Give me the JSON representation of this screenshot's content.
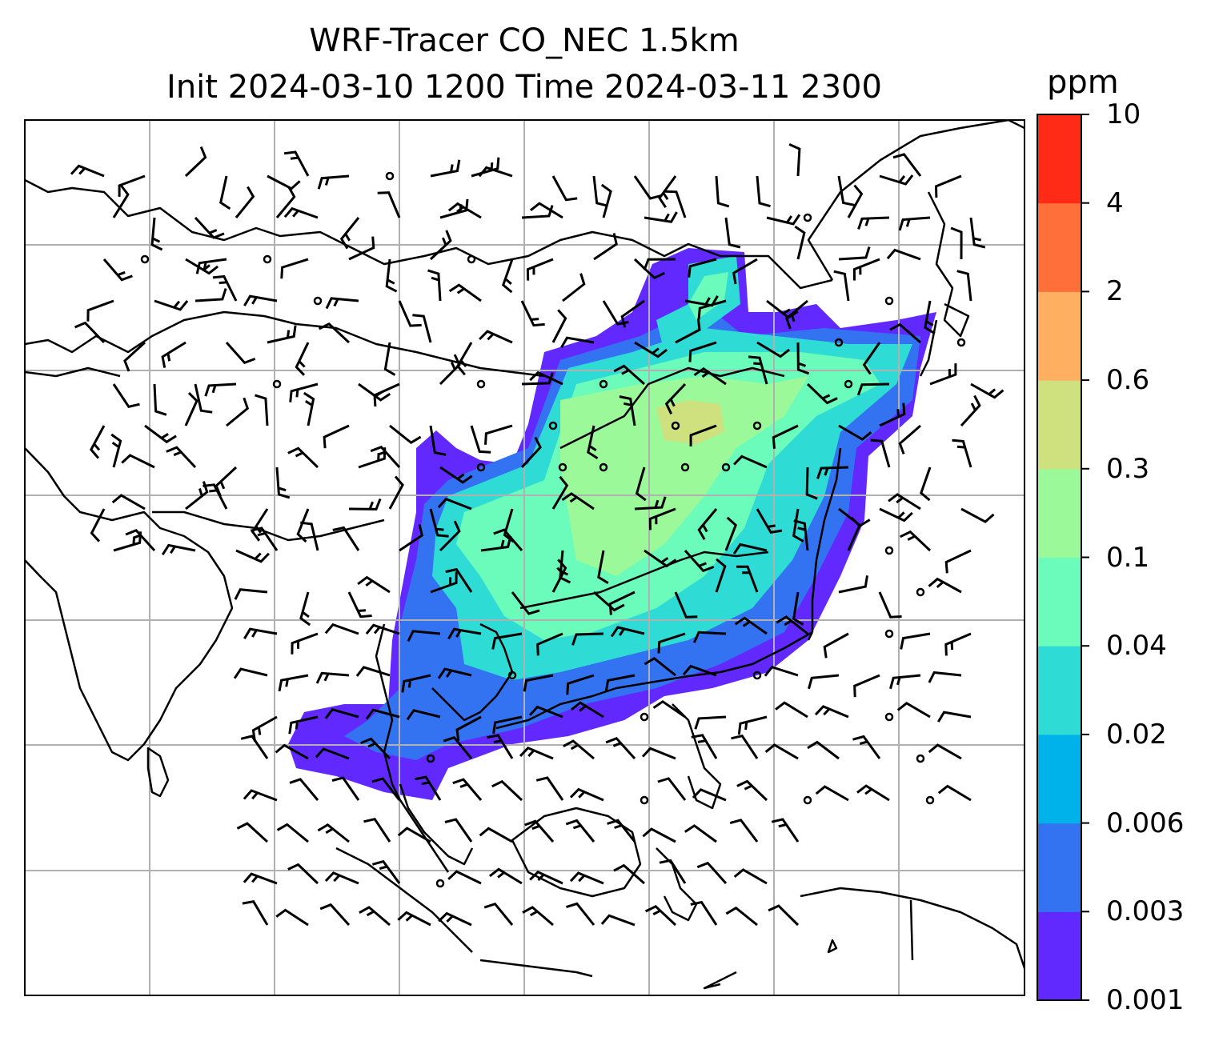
{
  "title": {
    "line1": "WRF-Tracer CO_NEC 1.5km",
    "line2": "Init 2024-03-10 1200 Time 2024-03-11 2300"
  },
  "colorbar": {
    "unit": "ppm",
    "levels": [
      "0.001",
      "0.003",
      "0.006",
      "0.02",
      "0.04",
      "0.1",
      "0.3",
      "0.6",
      "2",
      "4",
      "10"
    ],
    "colors": [
      "#6229ff",
      "#3373f2",
      "#00b2ea",
      "#2fdbd5",
      "#6bfbbb",
      "#9bf99a",
      "#cfe07f",
      "#ffaf5f",
      "#ff6f3a",
      "#ff2b17"
    ]
  },
  "map": {
    "field": "CO_NEC tracer concentration",
    "overlay": "wind barbs",
    "gridlines": true
  }
}
